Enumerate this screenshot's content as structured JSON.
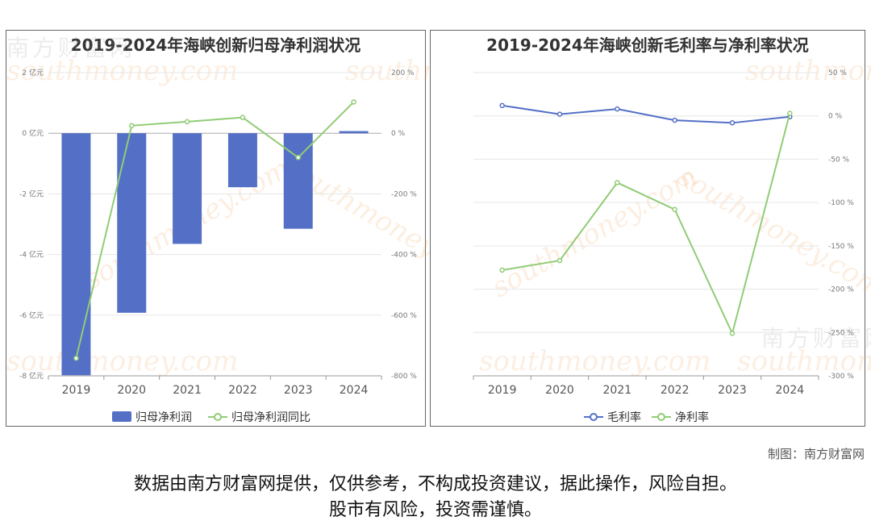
{
  "charts": [
    {
      "type": "bar+line",
      "title": "2019-2024年海峡创新归母净利润状况",
      "categories": [
        "2019",
        "2020",
        "2021",
        "2022",
        "2023",
        "2024"
      ],
      "left_axis": {
        "unit": "亿元",
        "ticks": [
          "2 亿元",
          "0 亿元",
          "-2 亿元",
          "-4 亿元",
          "-6 亿元",
          "-8 亿元"
        ],
        "range": [
          -8,
          2
        ]
      },
      "right_axis": {
        "unit": "%",
        "ticks": [
          "200 %",
          "0 %",
          "-200 %",
          "-400 %",
          "-600 %",
          "-800 %"
        ],
        "range": [
          -800,
          200
        ]
      },
      "series": [
        {
          "name": "归母净利润",
          "type": "bar",
          "axis": "left",
          "color": "#5470c6",
          "values": [
            -7.98,
            -5.92,
            -3.65,
            -1.78,
            -3.15,
            0.07
          ]
        },
        {
          "name": "归母净利润同比",
          "type": "line",
          "axis": "right",
          "color": "#91cc75",
          "values": [
            -742,
            25,
            38,
            52,
            -80,
            103
          ]
        }
      ],
      "legend_position": "bottom-center"
    },
    {
      "type": "line",
      "title": "2019-2024年海峡创新毛利率与净利率状况",
      "categories": [
        "2019",
        "2020",
        "2021",
        "2022",
        "2023",
        "2024"
      ],
      "right_axis": {
        "unit": "%",
        "ticks": [
          "50 %",
          "0 %",
          "-50 %",
          "-100 %",
          "-150 %",
          "-200 %",
          "-250 %",
          "-300 %"
        ],
        "range": [
          -300,
          50
        ]
      },
      "series": [
        {
          "name": "毛利率",
          "type": "line",
          "color": "#5470c6",
          "values": [
            12,
            2,
            8,
            -5,
            -8,
            -1
          ]
        },
        {
          "name": "净利率",
          "type": "line",
          "color": "#91cc75",
          "values": [
            -178,
            -167,
            -77,
            -108,
            -251,
            3
          ]
        }
      ],
      "legend_position": "bottom-center"
    }
  ],
  "credit": "制图：南方财富网",
  "disclaimer": {
    "line1": "数据由南方财富网提供，仅供参考，不构成投资建议，据此操作，风险自担。",
    "line2": "股市有风险，投资需谨慎。"
  },
  "watermark": {
    "cn": "南方财富网",
    "en": "southmoney.com"
  }
}
